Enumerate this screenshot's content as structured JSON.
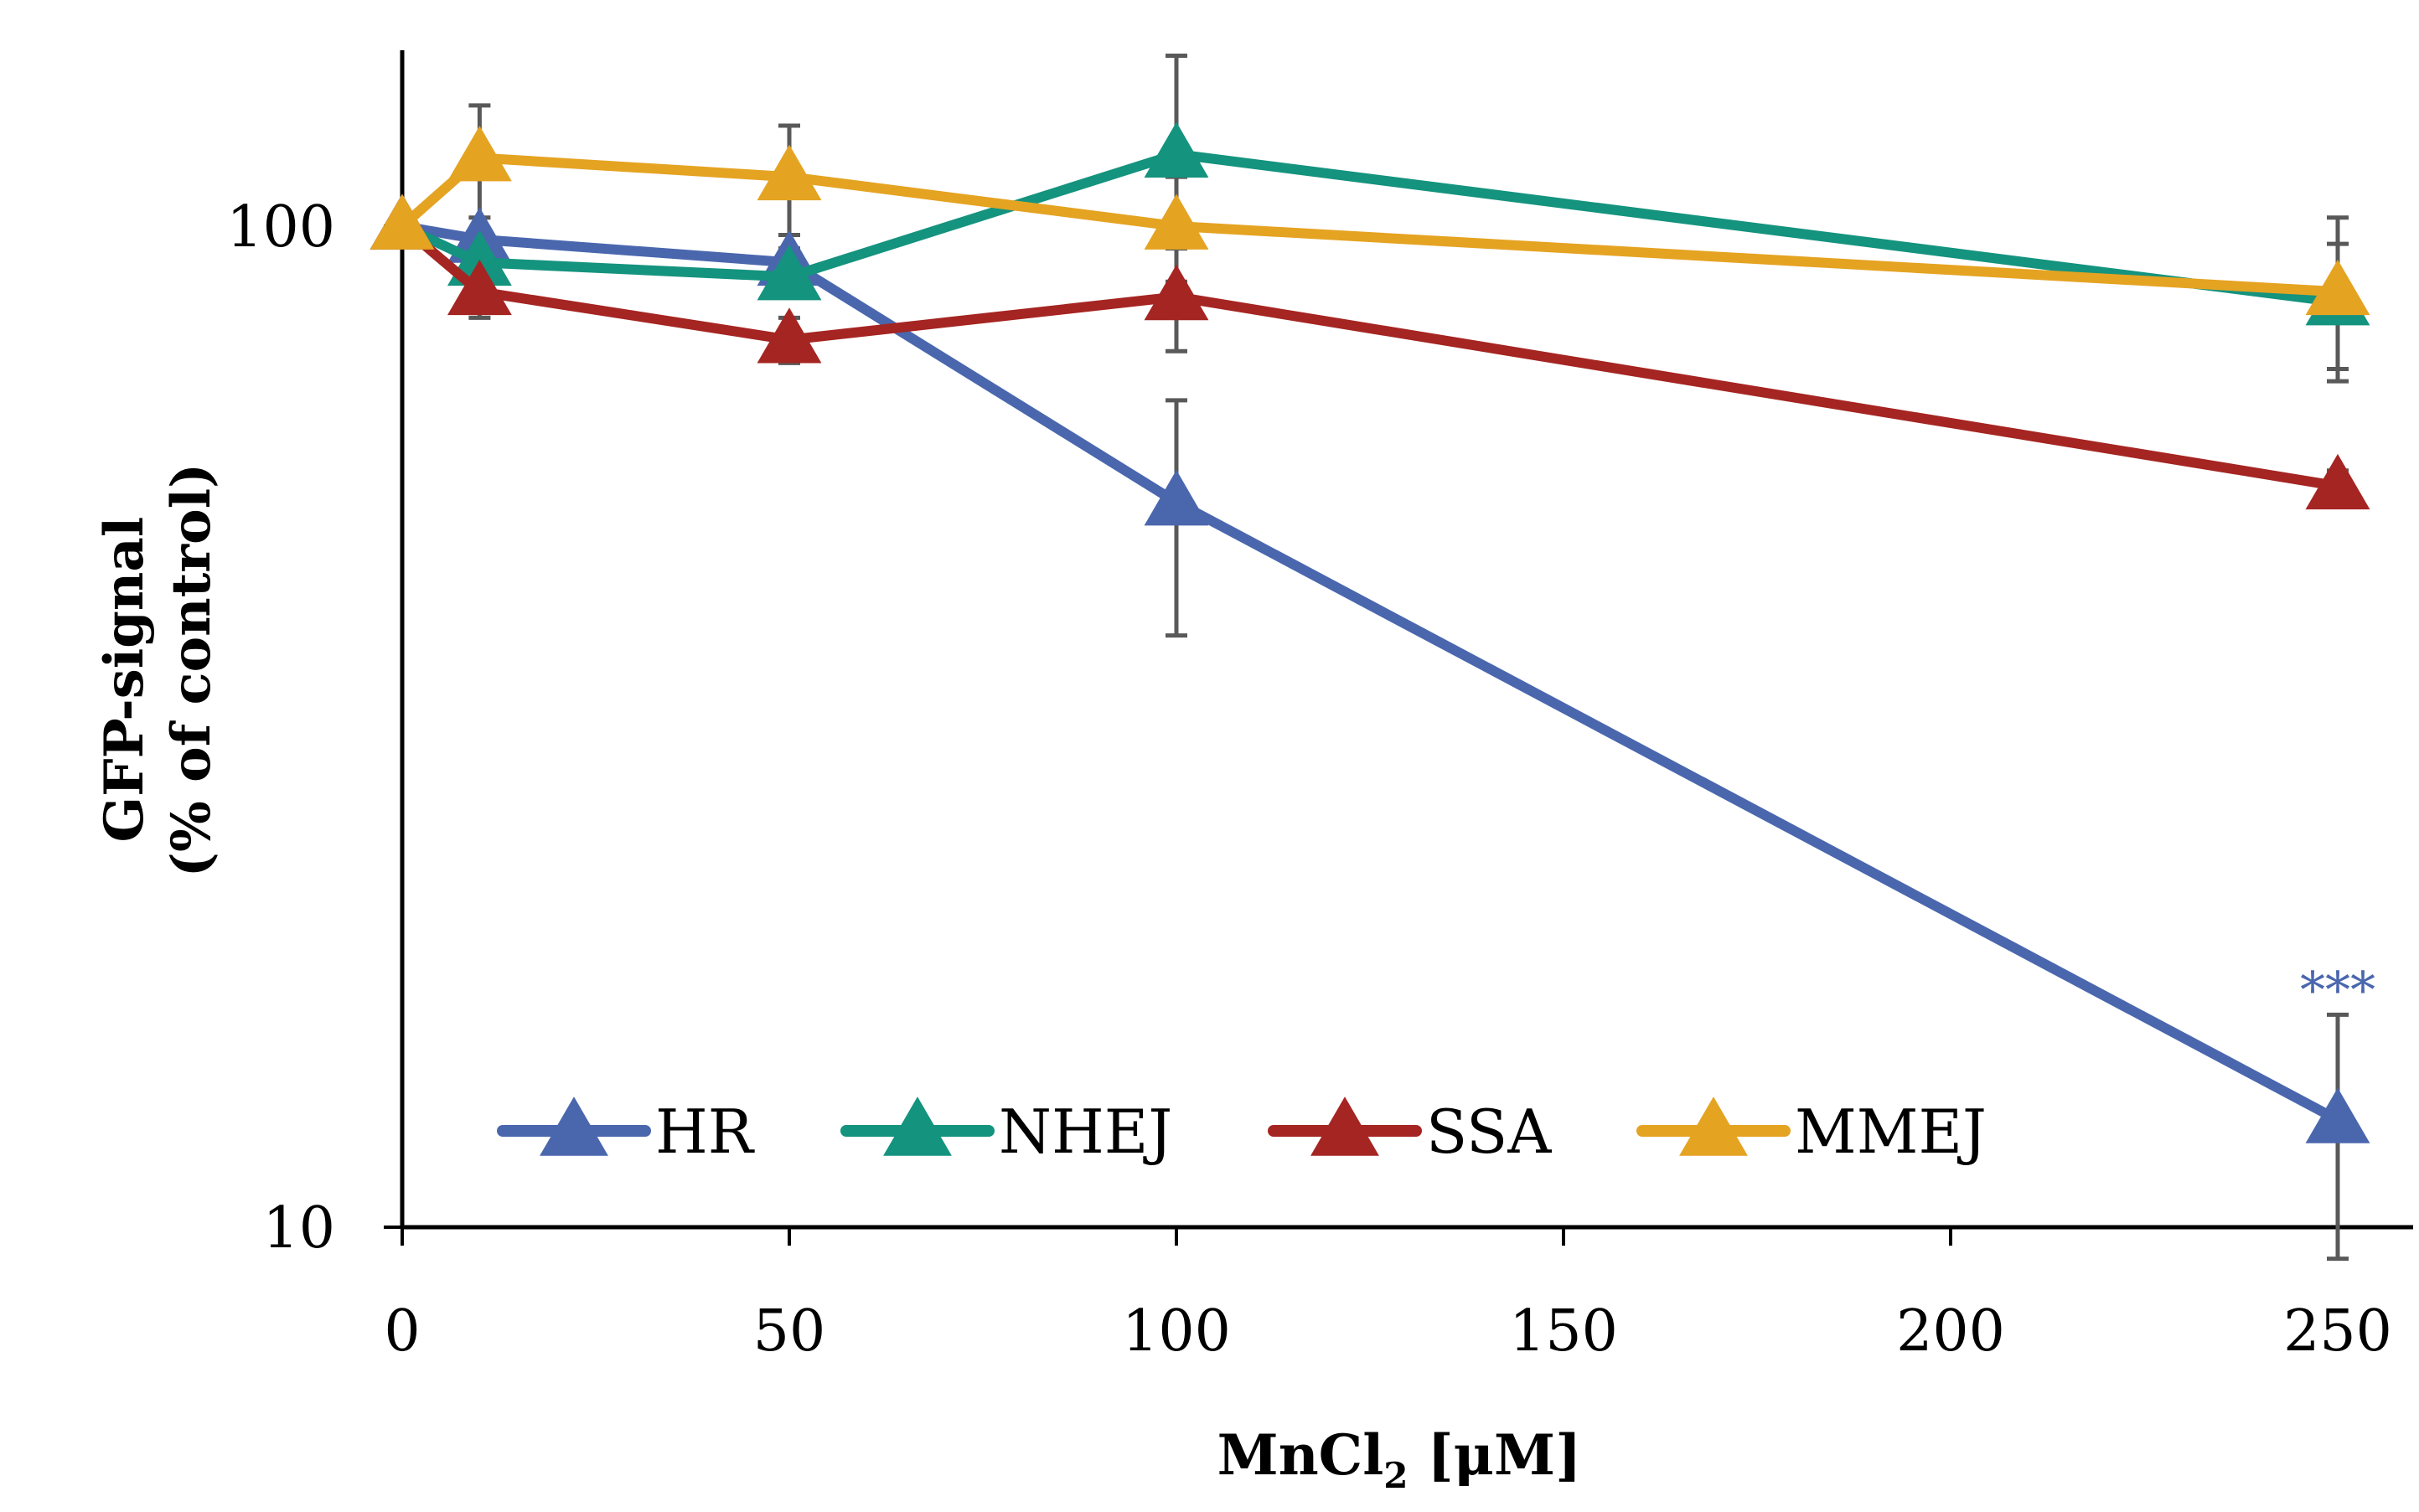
{
  "colors": {
    "HR": "#4a67ae",
    "NHEJ": "#14937e",
    "SSA": "#a52522",
    "MMEJ": "#e5a322",
    "axis": "#000000",
    "error_bar": "#595959",
    "annotation": "#4a67ae"
  },
  "chart_data": {
    "type": "line",
    "y_scale": "log",
    "ylim": [
      10,
      160
    ],
    "xlim": [
      0,
      260
    ],
    "x_ticks": [
      "0",
      "50",
      "100",
      "150",
      "200",
      "250"
    ],
    "y_ticks": [
      "10",
      "100"
    ],
    "x_tick_values": [
      0,
      50,
      100,
      150,
      200,
      250
    ],
    "y_tick_values": [
      10,
      100
    ],
    "xlabel_main": "MnCl",
    "xlabel_sub": "2",
    "xlabel_unit": " [μM]",
    "ylabel_line1": "GFP-signal",
    "ylabel_line2": "(% of control)",
    "x": [
      0,
      10,
      50,
      100,
      250
    ],
    "series": [
      {
        "name": "HR",
        "color_key": "HR",
        "values": [
          100,
          97,
          92,
          53,
          12.8
        ],
        "err": [
          0,
          2,
          3,
          14,
          3.5
        ]
      },
      {
        "name": "NHEJ",
        "color_key": "NHEJ",
        "values": [
          100,
          92,
          89,
          118,
          84
        ],
        "err": [
          0,
          3,
          4,
          30,
          12
        ]
      },
      {
        "name": "SSA",
        "color_key": "SSA",
        "values": [
          100,
          86,
          77,
          85,
          55
        ],
        "err": [
          0,
          5,
          4,
          10,
          2
        ]
      },
      {
        "name": "MMEJ",
        "color_key": "MMEJ",
        "values": [
          100,
          117,
          112,
          100,
          86
        ],
        "err": [
          0,
          15,
          14,
          12,
          16
        ]
      }
    ],
    "annotations": [
      {
        "text": "***",
        "x": 250,
        "y": 17.5,
        "color_key": "annotation"
      }
    ],
    "legend": {
      "placement": "bottom-inside",
      "entries": [
        "HR",
        "NHEJ",
        "SSA",
        "MMEJ"
      ]
    }
  }
}
